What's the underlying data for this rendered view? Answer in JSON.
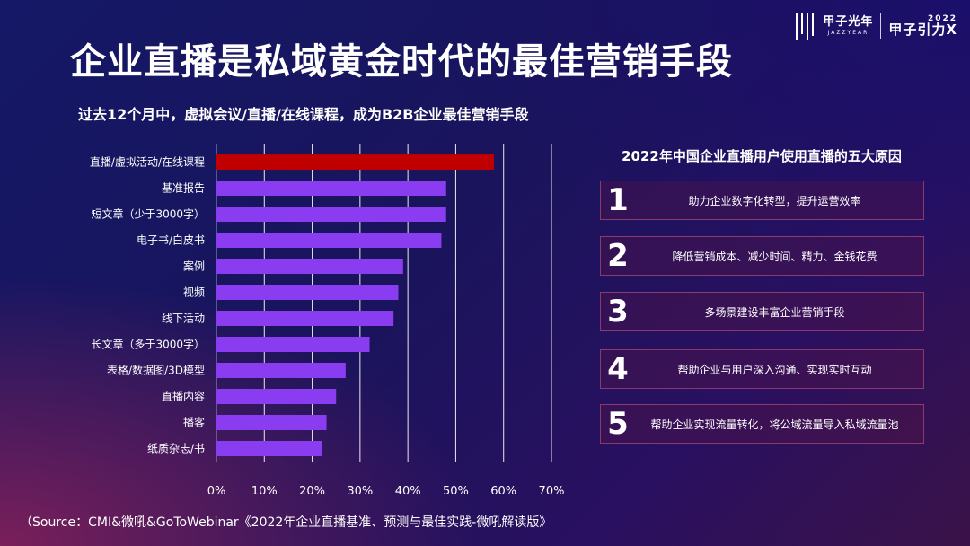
{
  "title": "企业直播是私域黄金时代的最佳营销手段",
  "subtitle": "过去12个月中，虚拟会议/直播/在线课程，成为B2B企业最佳营销手段",
  "logo": {
    "brand_cn": "甲子光年",
    "brand_en": "JAZZYEAR",
    "event_year": "2022",
    "event_name": "甲子引力X"
  },
  "colors": {
    "highlight": "#c00000",
    "bar": "#8a3cf0",
    "grid": "#ffffff"
  },
  "chart_data": {
    "type": "bar",
    "orientation": "horizontal",
    "categories": [
      "直播/虚拟活动/在线课程",
      "基准报告",
      "短文章（少于3000字）",
      "电子书/白皮书",
      "案例",
      "视频",
      "线下活动",
      "长文章（多于3000字）",
      "表格/数据图/3D模型",
      "直播内容",
      "播客",
      "纸质杂志/书"
    ],
    "values": [
      58,
      48,
      48,
      47,
      39,
      38,
      37,
      32,
      27,
      25,
      23,
      22
    ],
    "highlight_index": 0,
    "xlim": [
      0,
      70
    ],
    "xticks": [
      "0%",
      "10%",
      "20%",
      "30%",
      "40%",
      "50%",
      "60%",
      "70%"
    ],
    "tick_values": [
      0,
      10,
      20,
      30,
      40,
      50,
      60,
      70
    ],
    "grid": true,
    "xlabel": "",
    "ylabel": ""
  },
  "reasons_title": "2022年中国企业直播用户使用直播的五大原因",
  "reasons": [
    {
      "num": "1",
      "text": "助力企业数字化转型，提升运营效率"
    },
    {
      "num": "2",
      "text": "降低营销成本、减少时间、精力、金钱花费"
    },
    {
      "num": "3",
      "text": "多场景建设丰富企业营销手段"
    },
    {
      "num": "4",
      "text": "帮助企业与用户深入沟通、实现实时互动"
    },
    {
      "num": "5",
      "text": "帮助企业实现流量转化，将公域流量导入私域流量池"
    }
  ],
  "source": "（Source：CMI&微吼&GoToWebinar《2022年企业直播基准、预测与最佳实践-微吼解读版》"
}
